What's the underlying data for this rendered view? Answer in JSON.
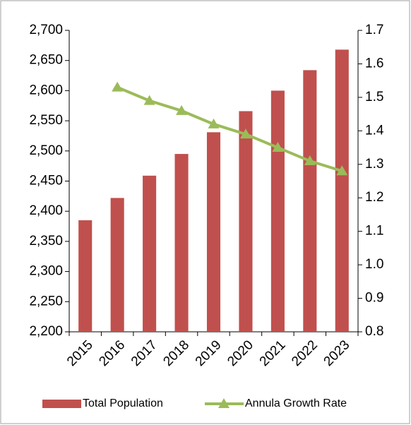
{
  "chart_data": {
    "type": "bar_line",
    "categories": [
      "2015",
      "2016",
      "2017",
      "2018",
      "2019",
      "2020",
      "2021",
      "2022",
      "2023"
    ],
    "series": [
      {
        "name": "Total Population",
        "type": "bar",
        "color": "#c0504d",
        "values": [
          2385,
          2422,
          2459,
          2495,
          2531,
          2566,
          2600,
          2634,
          2668
        ]
      },
      {
        "name": "Annula Growth Rate",
        "type": "line",
        "axis": "y2",
        "color": "#9bbb59",
        "values": [
          null,
          1.53,
          1.49,
          1.46,
          1.42,
          1.39,
          1.35,
          1.31,
          1.28
        ]
      }
    ],
    "ylim": [
      2200,
      2700
    ],
    "yticks": [
      {
        "value": 2200,
        "label": "2,200"
      },
      {
        "value": 2250,
        "label": "2,250"
      },
      {
        "value": 2300,
        "label": "2,300"
      },
      {
        "value": 2350,
        "label": "2,350"
      },
      {
        "value": 2400,
        "label": "2,400"
      },
      {
        "value": 2450,
        "label": "2,450"
      },
      {
        "value": 2500,
        "label": "2,500"
      },
      {
        "value": 2550,
        "label": "2,550"
      },
      {
        "value": 2600,
        "label": "2,600"
      },
      {
        "value": 2650,
        "label": "2,650"
      },
      {
        "value": 2700,
        "label": "2,700"
      }
    ],
    "y2lim": [
      0.8,
      1.7
    ],
    "y2ticks": [
      0.8,
      0.9,
      {
        "value": 1.0,
        "label": "1.0"
      },
      1.1,
      1.2,
      1.3,
      1.4,
      1.5,
      1.6,
      1.7
    ],
    "legend": "bottom"
  }
}
